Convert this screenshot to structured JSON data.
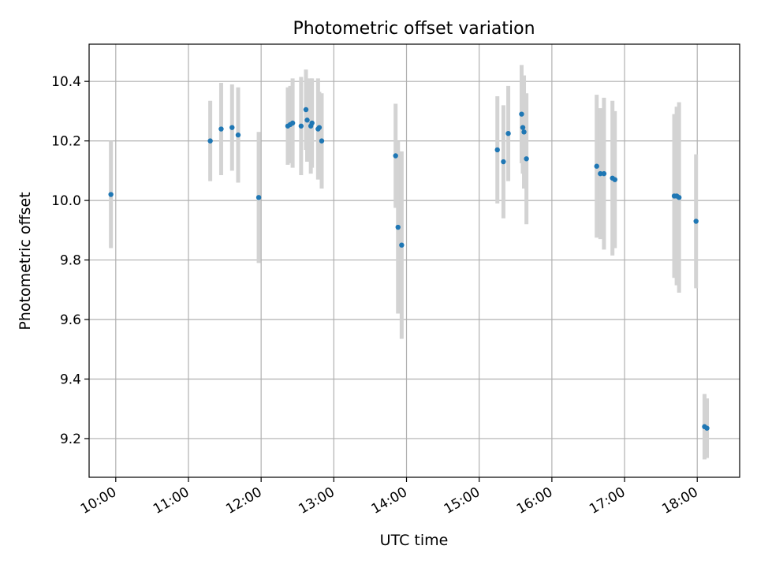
{
  "chart_data": {
    "type": "scatter",
    "title": "Photometric offset variation",
    "xlabel": "UTC time",
    "ylabel": "Photometric offset",
    "xlim": [
      "09:38",
      "18:35"
    ],
    "ylim": [
      9.07,
      10.525
    ],
    "grid": true,
    "x_ticks": [
      "10:00",
      "11:00",
      "12:00",
      "13:00",
      "14:00",
      "15:00",
      "16:00",
      "17:00",
      "18:00"
    ],
    "y_ticks": [
      "9.2",
      "9.4",
      "9.6",
      "9.8",
      "10.0",
      "10.2",
      "10.4"
    ],
    "marker_color": "#1f77b4",
    "errorbar_color": "#d3d3d3",
    "points": [
      {
        "x": "09:56",
        "y": 10.02,
        "err": 0.18
      },
      {
        "x": "11:18",
        "y": 10.2,
        "err": 0.135
      },
      {
        "x": "11:27",
        "y": 10.24,
        "err": 0.155
      },
      {
        "x": "11:36",
        "y": 10.245,
        "err": 0.145
      },
      {
        "x": "11:41",
        "y": 10.22,
        "err": 0.16
      },
      {
        "x": "11:58",
        "y": 10.01,
        "err": 0.22
      },
      {
        "x": "12:22",
        "y": 10.25,
        "err": 0.13
      },
      {
        "x": "12:24",
        "y": 10.255,
        "err": 0.13
      },
      {
        "x": "12:26",
        "y": 10.26,
        "err": 0.15
      },
      {
        "x": "12:33",
        "y": 10.25,
        "err": 0.165
      },
      {
        "x": "12:37",
        "y": 10.305,
        "err": 0.135
      },
      {
        "x": "12:38",
        "y": 10.27,
        "err": 0.14
      },
      {
        "x": "12:41",
        "y": 10.25,
        "err": 0.16
      },
      {
        "x": "12:42",
        "y": 10.26,
        "err": 0.15
      },
      {
        "x": "12:47",
        "y": 10.24,
        "err": 0.17
      },
      {
        "x": "12:48",
        "y": 10.245,
        "err": 0.12
      },
      {
        "x": "12:50",
        "y": 10.2,
        "err": 0.16
      },
      {
        "x": "13:51",
        "y": 10.15,
        "err": 0.175
      },
      {
        "x": "13:53",
        "y": 9.91,
        "err": 0.29
      },
      {
        "x": "13:56",
        "y": 9.85,
        "err": 0.315
      },
      {
        "x": "15:15",
        "y": 10.17,
        "err": 0.18
      },
      {
        "x": "15:20",
        "y": 10.13,
        "err": 0.19
      },
      {
        "x": "15:24",
        "y": 10.225,
        "err": 0.16
      },
      {
        "x": "15:35",
        "y": 10.29,
        "err": 0.165
      },
      {
        "x": "15:36",
        "y": 10.245,
        "err": 0.155
      },
      {
        "x": "15:37",
        "y": 10.23,
        "err": 0.19
      },
      {
        "x": "15:39",
        "y": 10.14,
        "err": 0.22
      },
      {
        "x": "16:37",
        "y": 10.115,
        "err": 0.24
      },
      {
        "x": "16:40",
        "y": 10.09,
        "err": 0.22
      },
      {
        "x": "16:43",
        "y": 10.09,
        "err": 0.255
      },
      {
        "x": "16:50",
        "y": 10.075,
        "err": 0.26
      },
      {
        "x": "16:52",
        "y": 10.07,
        "err": 0.23
      },
      {
        "x": "17:41",
        "y": 10.015,
        "err": 0.275
      },
      {
        "x": "17:43",
        "y": 10.015,
        "err": 0.3
      },
      {
        "x": "17:45",
        "y": 10.01,
        "err": 0.32
      },
      {
        "x": "17:59",
        "y": 9.93,
        "err": 0.225
      },
      {
        "x": "18:06",
        "y": 9.24,
        "err": 0.11
      },
      {
        "x": "18:08",
        "y": 9.235,
        "err": 0.1
      }
    ]
  }
}
